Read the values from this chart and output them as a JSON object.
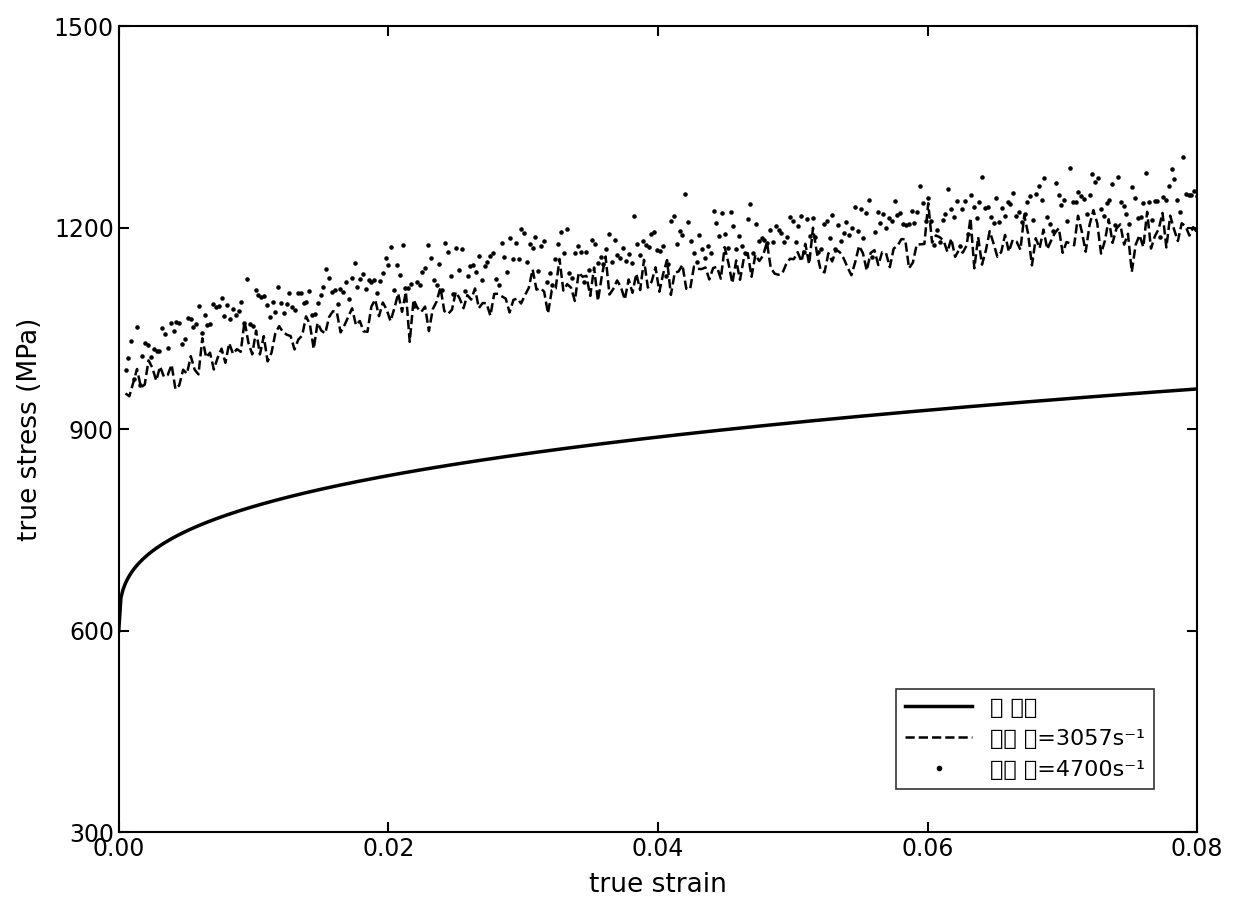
{
  "title": "",
  "xlabel": "true strain",
  "ylabel": "true stress (MPa)",
  "xlim": [
    0.0,
    0.08
  ],
  "ylim": [
    300,
    1500
  ],
  "xticks": [
    0.0,
    0.02,
    0.04,
    0.06,
    0.08
  ],
  "yticks": [
    300,
    600,
    900,
    1200,
    1500
  ],
  "background_color": "#ffffff",
  "legend_label_1": "准 静态",
  "legend_label_2": "应变 率=3057s",
  "legend_label_3": "应变 率=4700s",
  "static_color": "#000000",
  "dynamic_color": "#000000",
  "figsize": [
    12.4,
    9.15
  ],
  "dpi": 100
}
